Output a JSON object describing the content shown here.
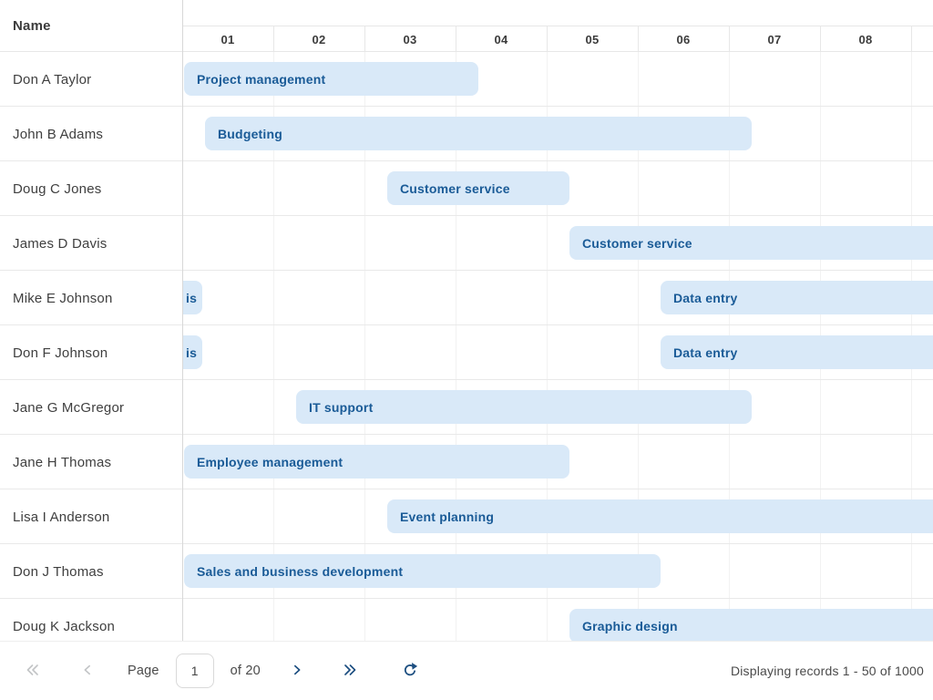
{
  "colors": {
    "bar_fill": "#d9e9f8",
    "bar_text": "#1a5b97",
    "name_text": "#3f3f3f",
    "header_text": "#3b3b3b",
    "grid_line": "#f2f2f2",
    "row_line": "#e9e9e9",
    "divider": "#d8d8d8",
    "header_line": "#e7e7e7",
    "footer_text": "#4a4a4a",
    "icon_active": "#1c4e80",
    "icon_disabled": "#c3c5c7"
  },
  "header": {
    "name_label": "Name",
    "days": [
      "01",
      "02",
      "03",
      "04",
      "05",
      "06",
      "07",
      "08"
    ]
  },
  "rows": [
    {
      "name": "Don A Taylor",
      "tasks": [
        {
          "label": "Project management",
          "start": 0.02,
          "end": 3.25,
          "clip": "none"
        }
      ]
    },
    {
      "name": "John B Adams",
      "tasks": [
        {
          "label": "Budgeting",
          "start": 0.25,
          "end": 6.25,
          "clip": "none"
        }
      ]
    },
    {
      "name": "Doug C Jones",
      "tasks": [
        {
          "label": "Customer service",
          "start": 2.25,
          "end": 4.25,
          "clip": "none"
        }
      ]
    },
    {
      "name": "James D Davis",
      "tasks": [
        {
          "label": "Customer service",
          "start": 4.25,
          "end": 8.6,
          "clip": "right"
        }
      ]
    },
    {
      "name": "Mike E Johnson",
      "tasks": [
        {
          "label": "is",
          "start": 0,
          "end": 0.22,
          "clip": "left"
        },
        {
          "label": "Data entry",
          "start": 5.25,
          "end": 8.6,
          "clip": "right"
        }
      ]
    },
    {
      "name": "Don F Johnson",
      "tasks": [
        {
          "label": "is",
          "start": 0,
          "end": 0.22,
          "clip": "left"
        },
        {
          "label": "Data entry",
          "start": 5.25,
          "end": 8.6,
          "clip": "right"
        }
      ]
    },
    {
      "name": "Jane G McGregor",
      "tasks": [
        {
          "label": "IT support",
          "start": 1.25,
          "end": 6.25,
          "clip": "none"
        }
      ]
    },
    {
      "name": "Jane H Thomas",
      "tasks": [
        {
          "label": "Employee management",
          "start": 0.02,
          "end": 4.25,
          "clip": "none"
        }
      ]
    },
    {
      "name": "Lisa I Anderson",
      "tasks": [
        {
          "label": "Event planning",
          "start": 2.25,
          "end": 8.6,
          "clip": "right"
        }
      ]
    },
    {
      "name": "Don J Thomas",
      "tasks": [
        {
          "label": "Sales and business development",
          "start": 0.02,
          "end": 5.25,
          "clip": "none"
        }
      ]
    },
    {
      "name": "Doug K Jackson",
      "tasks": [
        {
          "label": "Graphic design",
          "start": 4.25,
          "end": 8.6,
          "clip": "right"
        }
      ]
    }
  ],
  "footer": {
    "page_label": "Page",
    "page_value": "1",
    "page_count_label": "of 20",
    "records_text": "Displaying records 1 - 50 of 1000"
  }
}
